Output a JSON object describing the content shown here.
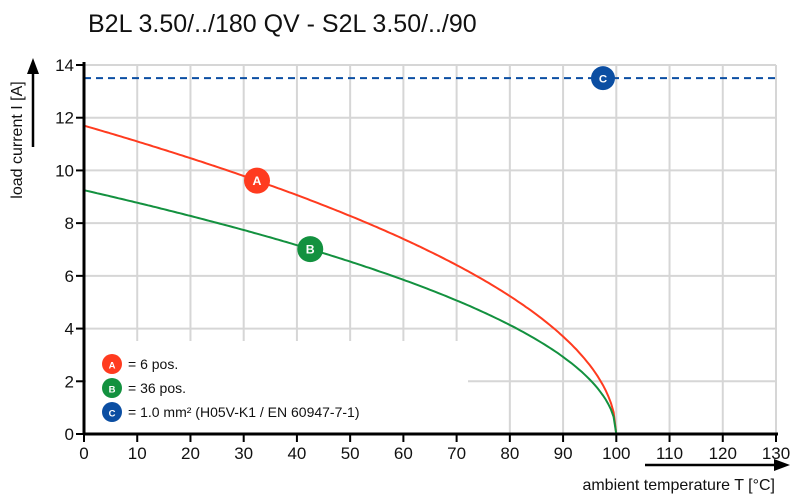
{
  "chart_data": {
    "type": "line",
    "title": "B2L 3.50/../180 QV - S2L 3.50/../90",
    "xlabel": "ambient temperature T [°C]",
    "ylabel": "load current I [A]",
    "xlim": [
      0,
      130
    ],
    "ylim": [
      0,
      14
    ],
    "xticks": [
      "0",
      "10",
      "20",
      "30",
      "40",
      "50",
      "60",
      "70",
      "80",
      "90",
      "100",
      "110",
      "120",
      "130"
    ],
    "yticks": [
      "0",
      "2",
      "4",
      "6",
      "8",
      "10",
      "12",
      "14"
    ],
    "grid": true,
    "x": [
      0,
      10,
      20,
      30,
      40,
      50,
      60,
      70,
      80,
      90,
      95,
      98,
      100
    ],
    "series": [
      {
        "name": "A",
        "color": "#ff3b1f",
        "values": [
          11.7,
          11.1,
          10.46,
          9.79,
          9.06,
          8.27,
          7.4,
          6.41,
          5.23,
          3.7,
          2.62,
          1.65,
          0
        ],
        "marker_x": 32.5
      },
      {
        "name": "B",
        "color": "#13913f",
        "values": [
          9.25,
          8.78,
          8.27,
          7.74,
          7.16,
          6.54,
          5.85,
          5.07,
          4.14,
          2.93,
          2.07,
          1.31,
          0
        ],
        "marker_x": 42.5
      },
      {
        "name": "C",
        "color": "#0b4ea2",
        "constant": 13.5,
        "style": "dashed",
        "marker_x": 97.5
      }
    ],
    "legend": {
      "placement": "bottom-left",
      "entries": [
        {
          "badge": "A",
          "text": "= 6 pos."
        },
        {
          "badge": "B",
          "text": "= 36 pos."
        },
        {
          "badge": "C",
          "text": "= 1.0 mm² (H05V-K1 / EN 60947-7-1)"
        }
      ]
    }
  }
}
